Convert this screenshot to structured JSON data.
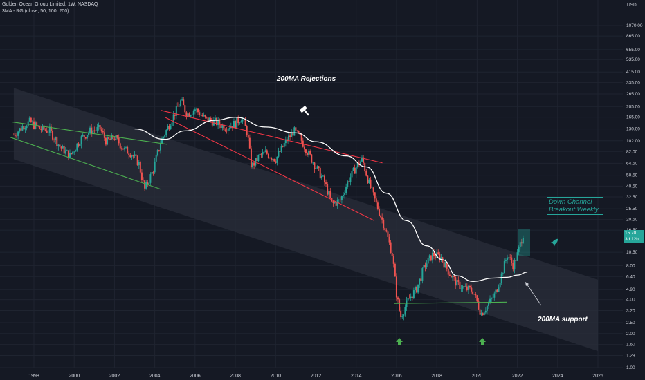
{
  "header": {
    "symbol_line": "Golden Ocean Group Limited, 1W, NASDAQ",
    "indicator_line": "3MA - RG (close, 50, 100, 200)"
  },
  "annotations": {
    "rejections": "200MA Rejections",
    "breakout_line1": "Down Channel",
    "breakout_line2": "Breakout Weekly",
    "support": "200MA support"
  },
  "price_badge": {
    "price": "15.70",
    "countdown": "3d 12h"
  },
  "icons": [
    "hammer-icon",
    "rocket-icon",
    "arrow-up-icon",
    "arrow-up-icon"
  ],
  "colors": {
    "background": "#151924",
    "channel_fill": "#2a2e39",
    "candle_up": "#26a69a",
    "candle_down": "#ef5350",
    "ma200": "#ffffff",
    "trendline_green": "#4caf50",
    "trendline_red": "#f23645",
    "text": "#d1d4dc"
  },
  "chart_data": {
    "type": "candlestick",
    "title": "Golden Ocean Group Limited, 1W, NASDAQ",
    "indicator": "3MA - RG (close, 50, 100, 200)",
    "currency": "USD",
    "y_scale": "log",
    "y_ticks": [
      "1070.00",
      "865.00",
      "655.00",
      "535.00",
      "415.00",
      "335.00",
      "265.00",
      "205.00",
      "165.00",
      "130.00",
      "102.00",
      "82.00",
      "64.50",
      "50.50",
      "40.50",
      "32.50",
      "25.50",
      "20.50",
      "16.50",
      "10.50",
      "8.00",
      "6.40",
      "4.90",
      "4.00",
      "3.20",
      "2.50",
      "2.00",
      "1.60",
      "1.28",
      "1.00"
    ],
    "x_ticks": [
      "1998",
      "2000",
      "2002",
      "2004",
      "2006",
      "2008",
      "2010",
      "2012",
      "2014",
      "2016",
      "2018",
      "2020",
      "2022",
      "2024",
      "2026"
    ],
    "last_price": 15.7,
    "price_path": [
      [
        1997.0,
        115
      ],
      [
        1997.5,
        140
      ],
      [
        1997.8,
        150
      ],
      [
        1998.3,
        130
      ],
      [
        1998.8,
        125
      ],
      [
        1999.3,
        90
      ],
      [
        1999.8,
        75
      ],
      [
        2000.3,
        105
      ],
      [
        2000.8,
        125
      ],
      [
        2001.3,
        130
      ],
      [
        2001.6,
        100
      ],
      [
        2002.0,
        110
      ],
      [
        2002.5,
        85
      ],
      [
        2002.8,
        80
      ],
      [
        2003.2,
        65
      ],
      [
        2003.5,
        38
      ],
      [
        2003.9,
        55
      ],
      [
        2004.3,
        100
      ],
      [
        2004.7,
        140
      ],
      [
        2005.0,
        180
      ],
      [
        2005.3,
        230
      ],
      [
        2005.6,
        175
      ],
      [
        2006.0,
        195
      ],
      [
        2006.5,
        160
      ],
      [
        2007.0,
        150
      ],
      [
        2007.5,
        135
      ],
      [
        2008.0,
        145
      ],
      [
        2008.3,
        165
      ],
      [
        2008.6,
        120
      ],
      [
        2008.8,
        60
      ],
      [
        2009.2,
        75
      ],
      [
        2009.5,
        80
      ],
      [
        2010.0,
        70
      ],
      [
        2010.5,
        100
      ],
      [
        2010.9,
        125
      ],
      [
        2011.2,
        110
      ],
      [
        2011.6,
        80
      ],
      [
        2012.0,
        60
      ],
      [
        2012.4,
        45
      ],
      [
        2012.8,
        28
      ],
      [
        2013.2,
        30
      ],
      [
        2013.6,
        45
      ],
      [
        2014.0,
        60
      ],
      [
        2014.3,
        70
      ],
      [
        2014.6,
        45
      ],
      [
        2015.0,
        28
      ],
      [
        2015.4,
        18
      ],
      [
        2015.8,
        10
      ],
      [
        2016.0,
        4.5
      ],
      [
        2016.2,
        2.8
      ],
      [
        2016.6,
        4.0
      ],
      [
        2017.0,
        5.0
      ],
      [
        2017.4,
        8.0
      ],
      [
        2017.8,
        10
      ],
      [
        2018.2,
        9.5
      ],
      [
        2018.6,
        7.0
      ],
      [
        2019.0,
        5.5
      ],
      [
        2019.4,
        5.0
      ],
      [
        2019.8,
        4.8
      ],
      [
        2020.2,
        3.0
      ],
      [
        2020.5,
        3.5
      ],
      [
        2020.9,
        4.5
      ],
      [
        2021.2,
        6.5
      ],
      [
        2021.5,
        10
      ],
      [
        2021.8,
        8.0
      ],
      [
        2022.0,
        10
      ],
      [
        2022.3,
        15.7
      ]
    ],
    "ma200": [
      [
        2003.0,
        130
      ],
      [
        2004.5,
        105
      ],
      [
        2005.5,
        125
      ],
      [
        2007.0,
        155
      ],
      [
        2008.0,
        165
      ],
      [
        2009.5,
        135
      ],
      [
        2011.0,
        120
      ],
      [
        2012.0,
        100
      ],
      [
        2013.5,
        75
      ],
      [
        2014.5,
        60
      ],
      [
        2015.5,
        35
      ],
      [
        2016.5,
        20
      ],
      [
        2017.5,
        12
      ],
      [
        2018.3,
        9
      ],
      [
        2019.0,
        6.5
      ],
      [
        2019.8,
        5.8
      ],
      [
        2020.8,
        6.2
      ],
      [
        2021.5,
        6.3
      ],
      [
        2022.0,
        6.6
      ],
      [
        2022.5,
        7.0
      ]
    ],
    "down_channel": {
      "upper": [
        [
          1997.0,
          300
        ],
        [
          2026.0,
          6.0
        ]
      ],
      "lower": [
        [
          1997.0,
          70
        ],
        [
          2026.0,
          1.4
        ]
      ]
    },
    "trendlines": [
      {
        "color": "green",
        "points": [
          [
            1996.9,
            150
          ],
          [
            2004.6,
            95
          ]
        ]
      },
      {
        "color": "green",
        "points": [
          [
            1996.8,
            110
          ],
          [
            2004.3,
            38
          ]
        ]
      },
      {
        "color": "red",
        "points": [
          [
            2004.3,
            190
          ],
          [
            2015.3,
            65
          ]
        ]
      },
      {
        "color": "red",
        "points": [
          [
            2004.5,
            165
          ],
          [
            2014.9,
            20
          ]
        ]
      },
      {
        "color": "green",
        "points": [
          [
            2015.9,
            3.7
          ],
          [
            2021.5,
            3.8
          ]
        ]
      }
    ]
  }
}
